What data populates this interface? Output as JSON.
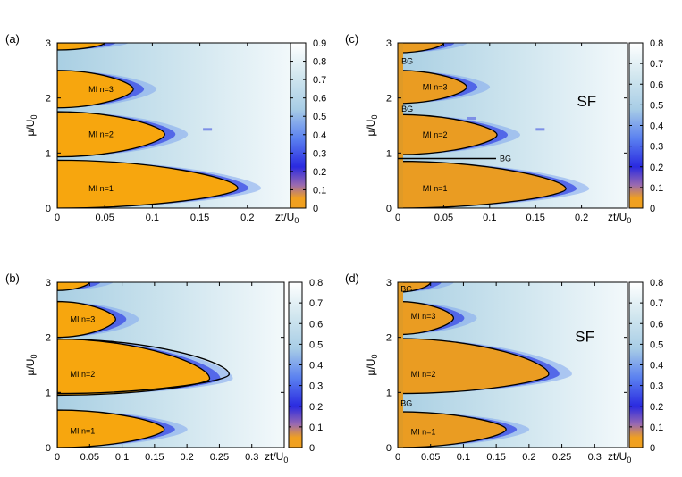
{
  "chart_data": [
    {
      "type": "heatmap",
      "panel_label": "(a)",
      "xlabel_main": "zt/U",
      "xlabel_sub": "0",
      "ylabel_main": "μ/U",
      "ylabel_sub": "0",
      "xlim": [
        0,
        0.25
      ],
      "ylim": [
        0,
        3
      ],
      "xticks": [
        "0",
        "0.05",
        "0.1",
        "0.15",
        "0.2"
      ],
      "xtick_values": [
        0,
        0.05,
        0.1,
        0.15,
        0.2
      ],
      "yticks": [
        "0",
        "1",
        "2",
        "3"
      ],
      "ytick_values": [
        0,
        1,
        2,
        3
      ],
      "colorbar": {
        "min": 0,
        "max": 0.9,
        "ticks": [
          "0",
          "0.1",
          "0.2",
          "0.3",
          "0.4",
          "0.5",
          "0.6",
          "0.7",
          "0.8",
          "0.9"
        ],
        "tick_values": [
          0,
          0.1,
          0.2,
          0.3,
          0.4,
          0.5,
          0.6,
          0.7,
          0.8,
          0.9
        ]
      },
      "lobes": [
        {
          "ymin": 0,
          "ymax": 0.87,
          "tip_x": 0.19,
          "tip_y": 0.36,
          "text": "MI   n=1",
          "label_x": 0.033,
          "label_y": 0.36
        },
        {
          "ymin": 0.93,
          "ymax": 1.75,
          "tip_x": 0.113,
          "tip_y": 1.34,
          "text": "MI   n=2",
          "label_x": 0.033,
          "label_y": 1.34
        },
        {
          "ymin": 1.82,
          "ymax": 2.5,
          "tip_x": 0.08,
          "tip_y": 2.16,
          "text": "MI   n=3",
          "label_x": 0.033,
          "label_y": 2.16
        },
        {
          "ymin": 2.87,
          "ymax": 3.0,
          "tip_x": 0.05,
          "tip_y": 3.0,
          "text": "",
          "label_x": 0,
          "label_y": 0
        }
      ],
      "disorder": false,
      "dash_marks": [
        {
          "x": 0.158,
          "y": 1.43
        }
      ],
      "extra_labels": [],
      "lines": []
    },
    {
      "type": "heatmap",
      "panel_label": "(b)",
      "xlabel_main": "zt/U",
      "xlabel_sub": "0",
      "ylabel_main": "μ/U",
      "ylabel_sub": "0",
      "xlim": [
        0,
        0.35
      ],
      "ylim": [
        0,
        3
      ],
      "xticks": [
        "0",
        "0.05",
        "0.1",
        "0.15",
        "0.2",
        "0.25",
        "0.3"
      ],
      "xtick_values": [
        0,
        0.05,
        0.1,
        0.15,
        0.2,
        0.25,
        0.3
      ],
      "yticks": [
        "0",
        "1",
        "2",
        "3"
      ],
      "ytick_values": [
        0,
        1,
        2,
        3
      ],
      "colorbar": {
        "min": 0,
        "max": 0.8,
        "ticks": [
          "0",
          "0.1",
          "0.2",
          "0.3",
          "0.4",
          "0.5",
          "0.6",
          "0.7",
          "0.8"
        ],
        "tick_values": [
          0,
          0.1,
          0.2,
          0.3,
          0.4,
          0.5,
          0.6,
          0.7,
          0.8
        ]
      },
      "lobes": [
        {
          "ymin": 0,
          "ymax": 0.68,
          "tip_x": 0.165,
          "tip_y": 0.33,
          "text": "MI   n=1",
          "label_x": 0.02,
          "label_y": 0.3
        },
        {
          "ymin": 0.95,
          "ymax": 1.97,
          "tip_x": 0.235,
          "tip_y": 1.25,
          "text": "MI   n=2",
          "label_x": 0.02,
          "label_y": 1.33
        },
        {
          "ymin": 2.0,
          "ymax": 2.65,
          "tip_x": 0.09,
          "tip_y": 2.33,
          "text": "MI   n=3",
          "label_x": 0.02,
          "label_y": 2.33
        },
        {
          "ymin": 2.85,
          "ymax": 3.0,
          "tip_x": 0.05,
          "tip_y": 3.0,
          "text": "",
          "label_x": 0,
          "label_y": 0
        }
      ],
      "disorder": false,
      "dash_marks": [],
      "extra_labels": [],
      "lines": [],
      "outline_lobe": {
        "ymin": 0.98,
        "ymax": 1.97,
        "tip_x": 0.265,
        "tip_y": 1.33
      }
    },
    {
      "type": "heatmap",
      "panel_label": "(c)",
      "xlabel_main": "zt/U",
      "xlabel_sub": "0",
      "ylabel_main": "μ/U",
      "ylabel_sub": "0",
      "xlim": [
        0,
        0.25
      ],
      "ylim": [
        0,
        3
      ],
      "xticks": [
        "0",
        "0.05",
        "0.1",
        "0.15",
        "0.2"
      ],
      "xtick_values": [
        0,
        0.05,
        0.1,
        0.15,
        0.2
      ],
      "yticks": [
        "0",
        "1",
        "2",
        "3"
      ],
      "ytick_values": [
        0,
        1,
        2,
        3
      ],
      "colorbar": {
        "min": 0,
        "max": 0.8,
        "ticks": [
          "0",
          "0.1",
          "0.2",
          "0.3",
          "0.4",
          "0.5",
          "0.6",
          "0.7",
          "0.8"
        ],
        "tick_values": [
          0,
          0.1,
          0.2,
          0.3,
          0.4,
          0.5,
          0.6,
          0.7,
          0.8
        ]
      },
      "lobes": [
        {
          "ymin": 0,
          "ymax": 0.85,
          "tip_x": 0.183,
          "tip_y": 0.35,
          "text": "MI   n=1",
          "label_x": 0.027,
          "label_y": 0.36
        },
        {
          "ymin": 0.97,
          "ymax": 1.7,
          "tip_x": 0.108,
          "tip_y": 1.33,
          "text": "MI   n=2",
          "label_x": 0.027,
          "label_y": 1.33
        },
        {
          "ymin": 1.9,
          "ymax": 2.5,
          "tip_x": 0.075,
          "tip_y": 2.2,
          "text": "MI   n=3",
          "label_x": 0.027,
          "label_y": 2.2
        },
        {
          "ymin": 2.82,
          "ymax": 3.0,
          "tip_x": 0.05,
          "tip_y": 3.0,
          "text": "",
          "label_x": 0,
          "label_y": 0
        }
      ],
      "disorder": true,
      "dash_marks": [
        {
          "x": 0.08,
          "y": 1.63
        },
        {
          "x": 0.155,
          "y": 1.43
        }
      ],
      "extra_labels": [
        {
          "text": "BG",
          "x": 0.003,
          "y": 2.67
        },
        {
          "text": "BG",
          "x": 0.003,
          "y": 1.8
        },
        {
          "text": "SF",
          "x": 0.195,
          "y": 1.9,
          "big": true
        }
      ],
      "lines": [
        {
          "x1": 0,
          "y1": 0.9,
          "x2": 0.107,
          "y2": 0.9,
          "text": "BG"
        }
      ]
    },
    {
      "type": "heatmap",
      "panel_label": "(d)",
      "xlabel_main": "zt/U",
      "xlabel_sub": "0",
      "ylabel_main": "μ/U",
      "ylabel_sub": "0",
      "xlim": [
        0,
        0.35
      ],
      "ylim": [
        0,
        3
      ],
      "xticks": [
        "0",
        "0.05",
        "0.1",
        "0.15",
        "0.2",
        "0.25",
        "0.3"
      ],
      "xtick_values": [
        0,
        0.05,
        0.1,
        0.15,
        0.2,
        0.25,
        0.3
      ],
      "yticks": [
        "0",
        "1",
        "2",
        "3"
      ],
      "ytick_values": [
        0,
        1,
        2,
        3
      ],
      "colorbar": {
        "min": 0,
        "max": 0.8,
        "ticks": [
          "0",
          "0.1",
          "0.2",
          "0.3",
          "0.4",
          "0.5",
          "0.6",
          "0.7",
          "0.8"
        ],
        "tick_values": [
          0,
          0.1,
          0.2,
          0.3,
          0.4,
          0.5,
          0.6,
          0.7,
          0.8
        ]
      },
      "lobes": [
        {
          "ymin": 0,
          "ymax": 0.65,
          "tip_x": 0.165,
          "tip_y": 0.33,
          "text": "MI   n=1",
          "label_x": 0.02,
          "label_y": 0.28
        },
        {
          "ymin": 0.98,
          "ymax": 1.98,
          "tip_x": 0.23,
          "tip_y": 1.33,
          "text": "MI   n=2",
          "label_x": 0.02,
          "label_y": 1.33
        },
        {
          "ymin": 2.05,
          "ymax": 2.65,
          "tip_x": 0.085,
          "tip_y": 2.35,
          "text": "MI   n=3",
          "label_x": 0.02,
          "label_y": 2.38
        },
        {
          "ymin": 2.82,
          "ymax": 3.0,
          "tip_x": 0.05,
          "tip_y": 3.0,
          "text": "",
          "label_x": 0,
          "label_y": 0
        }
      ],
      "disorder": true,
      "dash_marks": [],
      "extra_labels": [
        {
          "text": "BG",
          "x": 0.003,
          "y": 2.88
        },
        {
          "text": "BG",
          "x": 0.003,
          "y": 0.8
        },
        {
          "text": "SF",
          "x": 0.27,
          "y": 1.97,
          "big": true
        }
      ],
      "lines": []
    }
  ]
}
